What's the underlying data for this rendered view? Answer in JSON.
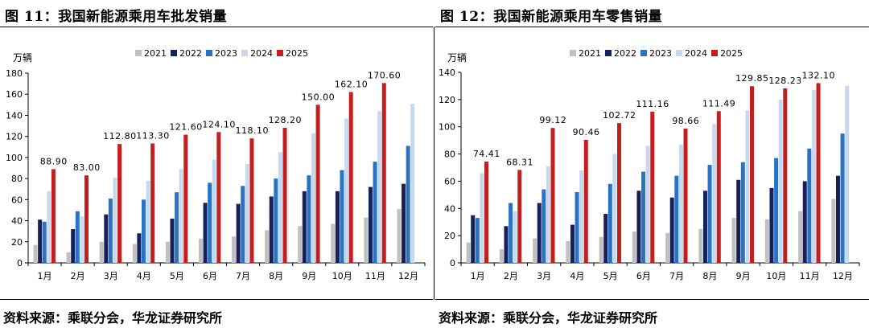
{
  "colors": {
    "2021": "#c0c0c0",
    "2022": "#16215a",
    "2023": "#2a72c4",
    "2024": "#c6d9ee",
    "2025": "#c41f1f"
  },
  "chart_data": [
    {
      "type": "bar",
      "title": "图 11：我国新能源乘用车批发销量",
      "ylabel": "万辆",
      "ylim": [
        0,
        180
      ],
      "yticks": [
        0,
        20,
        40,
        60,
        80,
        100,
        120,
        140,
        160,
        180
      ],
      "categories": [
        "1月",
        "2月",
        "3月",
        "4月",
        "5月",
        "6月",
        "7月",
        "8月",
        "9月",
        "10月",
        "11月",
        "12月"
      ],
      "legend": [
        "2021",
        "2022",
        "2023",
        "2024",
        "2025"
      ],
      "legend_position": "top",
      "series": [
        {
          "name": "2021",
          "values": [
            17,
            10,
            20,
            18,
            20,
            23,
            25,
            31,
            35,
            37,
            43,
            51
          ]
        },
        {
          "name": "2022",
          "values": [
            41,
            32,
            46,
            28,
            42,
            57,
            56,
            63,
            68,
            68,
            72,
            75
          ]
        },
        {
          "name": "2023",
          "values": [
            39,
            49,
            61,
            60,
            67,
            76,
            73,
            80,
            83,
            88,
            96,
            111
          ]
        },
        {
          "name": "2024",
          "values": [
            68,
            44,
            81,
            78,
            89,
            98,
            94,
            105,
            123,
            137,
            144,
            151
          ]
        },
        {
          "name": "2025",
          "values": [
            88.9,
            83.0,
            112.8,
            113.3,
            121.6,
            124.1,
            118.1,
            128.2,
            150.0,
            162.1,
            170.6,
            null
          ]
        }
      ],
      "data_labels": [
        "88.90",
        "83.00",
        "112.80",
        "113.30",
        "121.60",
        "124.10",
        "118.10",
        "128.20",
        "150.00",
        "162.10",
        "170.60"
      ],
      "source": "资料来源：乘联分会，华龙证券研究所"
    },
    {
      "type": "bar",
      "title": "图 12：我国新能源乘用车零售销量",
      "ylabel": "万辆",
      "ylim": [
        0,
        140
      ],
      "yticks": [
        0,
        20,
        40,
        60,
        80,
        100,
        120,
        140
      ],
      "categories": [
        "1月",
        "2月",
        "3月",
        "4月",
        "5月",
        "6月",
        "7月",
        "8月",
        "9月",
        "10月",
        "11月",
        "12月"
      ],
      "legend": [
        "2021",
        "2022",
        "2023",
        "2024",
        "2025"
      ],
      "legend_position": "top",
      "series": [
        {
          "name": "2021",
          "values": [
            15,
            10,
            18,
            16,
            19,
            23,
            22,
            25,
            33,
            32,
            38,
            47
          ]
        },
        {
          "name": "2022",
          "values": [
            35,
            27,
            44,
            28,
            36,
            53,
            48,
            53,
            61,
            55,
            60,
            64
          ]
        },
        {
          "name": "2023",
          "values": [
            33,
            44,
            54,
            52,
            58,
            67,
            64,
            72,
            74,
            77,
            84,
            95
          ]
        },
        {
          "name": "2024",
          "values": [
            66,
            38,
            71,
            68,
            80,
            86,
            87,
            102,
            112,
            120,
            127,
            130
          ]
        },
        {
          "name": "2025",
          "values": [
            74.41,
            68.31,
            99.12,
            90.46,
            102.72,
            111.16,
            98.66,
            111.49,
            129.85,
            128.23,
            132.1,
            null
          ]
        }
      ],
      "data_labels": [
        "74.41",
        "68.31",
        "99.12",
        "90.46",
        "102.72",
        "111.16",
        "98.66",
        "111.49",
        "129.85",
        "128.23",
        "132.10"
      ],
      "source": "资料来源：乘联分会，华龙证券研究所"
    }
  ]
}
